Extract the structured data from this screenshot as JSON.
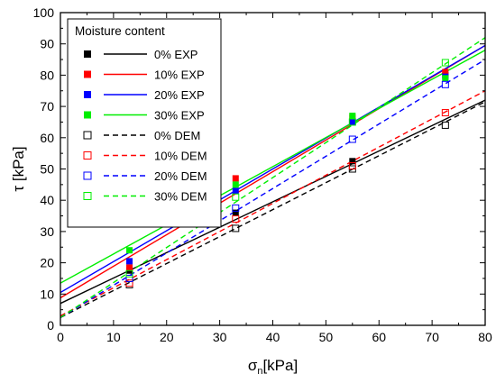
{
  "chart_data": {
    "type": "scatter",
    "xlabel": "σn[kPa]",
    "xlabel_main": "σ",
    "xlabel_sub": "n",
    "xlabel_unit": "[kPa]",
    "ylabel": "τ [kPa]",
    "xlim": [
      0,
      80
    ],
    "ylim": [
      0,
      100
    ],
    "x_ticks": [
      "0",
      "10",
      "20",
      "30",
      "40",
      "50",
      "60",
      "70",
      "80"
    ],
    "y_ticks": [
      "0",
      "10",
      "20",
      "30",
      "40",
      "50",
      "60",
      "70",
      "80",
      "90",
      "100"
    ],
    "grid": false,
    "legend_title": "Moisture content",
    "legend_position": "top-left",
    "series": [
      {
        "name": "0% EXP",
        "kind": "exp",
        "color": "#000000",
        "marker": "filled-square",
        "x": [
          13,
          33,
          55,
          72.5
        ],
        "y": [
          17.5,
          36,
          52.5,
          80
        ],
        "fit": {
          "x": [
            0,
            80
          ],
          "y": [
            7,
            72
          ]
        }
      },
      {
        "name": "10% EXP",
        "kind": "exp",
        "color": "#ff0000",
        "marker": "filled-square",
        "x": [
          13,
          33,
          55,
          72.5
        ],
        "y": [
          18.5,
          47,
          66.5,
          81
        ],
        "fit": {
          "x": [
            0,
            80
          ],
          "y": [
            8.8,
            89.5
          ]
        }
      },
      {
        "name": "20% EXP",
        "kind": "exp",
        "color": "#0000ff",
        "marker": "filled-square",
        "x": [
          13,
          33,
          55,
          72.5
        ],
        "y": [
          20.5,
          43,
          65,
          79.5
        ],
        "fit": {
          "x": [
            0,
            80
          ],
          "y": [
            10.5,
            89.5
          ]
        }
      },
      {
        "name": "30% EXP",
        "kind": "exp",
        "color": "#00ee00",
        "marker": "filled-square",
        "x": [
          13,
          33,
          55,
          72.5
        ],
        "y": [
          24,
          45,
          67,
          79
        ],
        "fit": {
          "x": [
            0,
            80
          ],
          "y": [
            13.5,
            88
          ]
        }
      },
      {
        "name": "0% DEM",
        "kind": "dem",
        "color": "#000000",
        "marker": "open-square",
        "x": [
          13,
          33,
          55,
          72.5
        ],
        "y": [
          13,
          31,
          50,
          64
        ],
        "fit": {
          "x": [
            0,
            80
          ],
          "y": [
            2.5,
            71.5
          ]
        }
      },
      {
        "name": "10% DEM",
        "kind": "dem",
        "color": "#ff0000",
        "marker": "open-square",
        "x": [
          13,
          33,
          55,
          72.5
        ],
        "y": [
          13.5,
          34,
          51,
          68
        ],
        "fit": {
          "x": [
            0,
            80
          ],
          "y": [
            3,
            75
          ]
        }
      },
      {
        "name": "20% DEM",
        "kind": "dem",
        "color": "#0000ff",
        "marker": "open-square",
        "x": [
          13,
          33,
          55,
          72.5
        ],
        "y": [
          15,
          37.5,
          59.5,
          77
        ],
        "fit": {
          "x": [
            0,
            80
          ],
          "y": [
            2.5,
            85
          ]
        }
      },
      {
        "name": "30% DEM",
        "kind": "dem",
        "color": "#00ee00",
        "marker": "open-square",
        "x": [
          13,
          33,
          55,
          72.5
        ],
        "y": [
          16.5,
          41,
          65,
          84
        ],
        "fit": {
          "x": [
            0,
            80
          ],
          "y": [
            2.5,
            92
          ]
        }
      }
    ]
  }
}
